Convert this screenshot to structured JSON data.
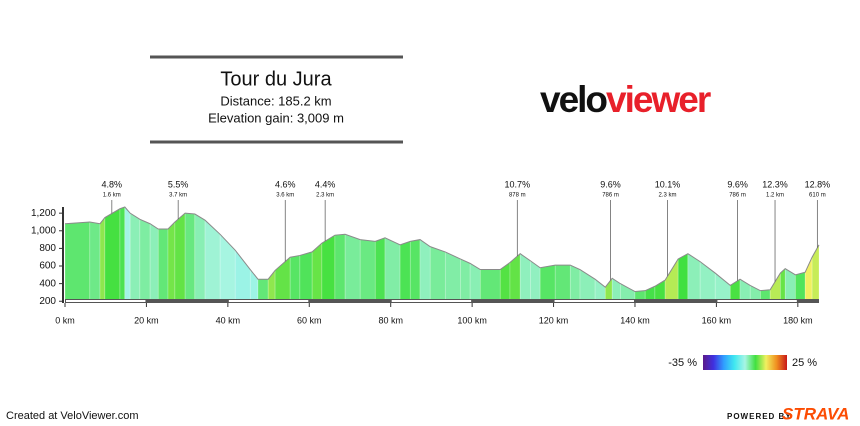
{
  "title_box": {
    "title": "Tour du Jura",
    "distance": "Distance: 185.2 km",
    "elevation_gain": "Elevation gain: 3,009 m"
  },
  "logo": {
    "velo": "velo",
    "viewer": "viewer"
  },
  "chart_data": {
    "type": "area",
    "x": [
      0,
      6.1,
      8.6,
      9.8,
      13.5,
      14.7,
      16.0,
      18.4,
      20.9,
      22.9,
      25.3,
      27.0,
      29.5,
      31.9,
      34.4,
      38.1,
      41.8,
      45.5,
      47.4,
      49.9,
      51.6,
      55.3,
      57.7,
      60.7,
      63.1,
      66.3,
      68.8,
      72.5,
      76.2,
      78.6,
      82.3,
      84.8,
      87.2,
      89.7,
      93.4,
      97.1,
      99.5,
      102.0,
      106.9,
      109.3,
      111.8,
      114.3,
      116.7,
      120.4,
      124.1,
      126.5,
      130.2,
      132.7,
      134.4,
      136.4,
      140.0,
      142.5,
      144.9,
      147.4,
      150.6,
      153.0,
      156.0,
      159.7,
      163.4,
      165.8,
      168.3,
      170.8,
      173.2,
      175.7,
      176.9,
      179.4,
      181.8,
      183.5,
      185.2
    ],
    "values": [
      1080,
      1100,
      1080,
      1150,
      1250,
      1270,
      1200,
      1130,
      1080,
      1020,
      1020,
      1100,
      1200,
      1190,
      1120,
      960,
      780,
      560,
      450,
      450,
      550,
      700,
      720,
      760,
      860,
      950,
      960,
      900,
      880,
      920,
      840,
      880,
      900,
      820,
      760,
      680,
      630,
      560,
      560,
      640,
      740,
      660,
      580,
      610,
      610,
      560,
      450,
      360,
      460,
      400,
      310,
      320,
      370,
      440,
      680,
      740,
      650,
      520,
      380,
      450,
      380,
      320,
      330,
      520,
      570,
      500,
      530,
      700,
      840
    ],
    "xlim": [
      0,
      185.2
    ],
    "ylim": [
      180,
      1270
    ],
    "xticks": [
      {
        "value": 0,
        "label": "0 km"
      },
      {
        "value": 20,
        "label": "20 km"
      },
      {
        "value": 40,
        "label": "40 km"
      },
      {
        "value": 60,
        "label": "60 km"
      },
      {
        "value": 80,
        "label": "80 km"
      },
      {
        "value": 100,
        "label": "100 km"
      },
      {
        "value": 120,
        "label": "120 km"
      },
      {
        "value": 140,
        "label": "140 km"
      },
      {
        "value": 160,
        "label": "160 km"
      },
      {
        "value": 180,
        "label": "180 km"
      }
    ],
    "yticks": [
      200,
      400,
      600,
      800,
      {
        "value": 1000,
        "label": "1,000"
      },
      {
        "value": 1200,
        "label": "1,200"
      }
    ],
    "annotations": [
      {
        "x": 11.5,
        "gradient": "4.8%",
        "detail": "1.6 km"
      },
      {
        "x": 27.8,
        "gradient": "5.5%",
        "detail": "3.7 km"
      },
      {
        "x": 54.1,
        "gradient": "4.6%",
        "detail": "3.6 km"
      },
      {
        "x": 63.9,
        "gradient": "4.4%",
        "detail": "2.3 km"
      },
      {
        "x": 111.1,
        "gradient": "10.7%",
        "detail": "878 m"
      },
      {
        "x": 134.0,
        "gradient": "9.6%",
        "detail": "786 m"
      },
      {
        "x": 148.0,
        "gradient": "10.1%",
        "detail": "2.3 km"
      },
      {
        "x": 165.2,
        "gradient": "9.6%",
        "detail": "786 m"
      },
      {
        "x": 174.4,
        "gradient": "12.3%",
        "detail": "1.2 km"
      },
      {
        "x": 184.8,
        "gradient": "12.8%",
        "detail": "610 m"
      }
    ],
    "colorscale": {
      "colors": [
        "#5b1a8a",
        "#4030e0",
        "#30a0ff",
        "#40e8f0",
        "#a8f5e4",
        "#40e040",
        "#f0f060",
        "#f09020",
        "#c81818"
      ],
      "min": {
        "value": -35,
        "label": "-35 %"
      },
      "max": {
        "value": 25,
        "label": "25 %"
      }
    },
    "outline_color": "#8a8a8a"
  },
  "footer": {
    "credit": "Created at VeloViewer.com",
    "powered_by": "POWERED BY",
    "brand": "STRAVA"
  }
}
